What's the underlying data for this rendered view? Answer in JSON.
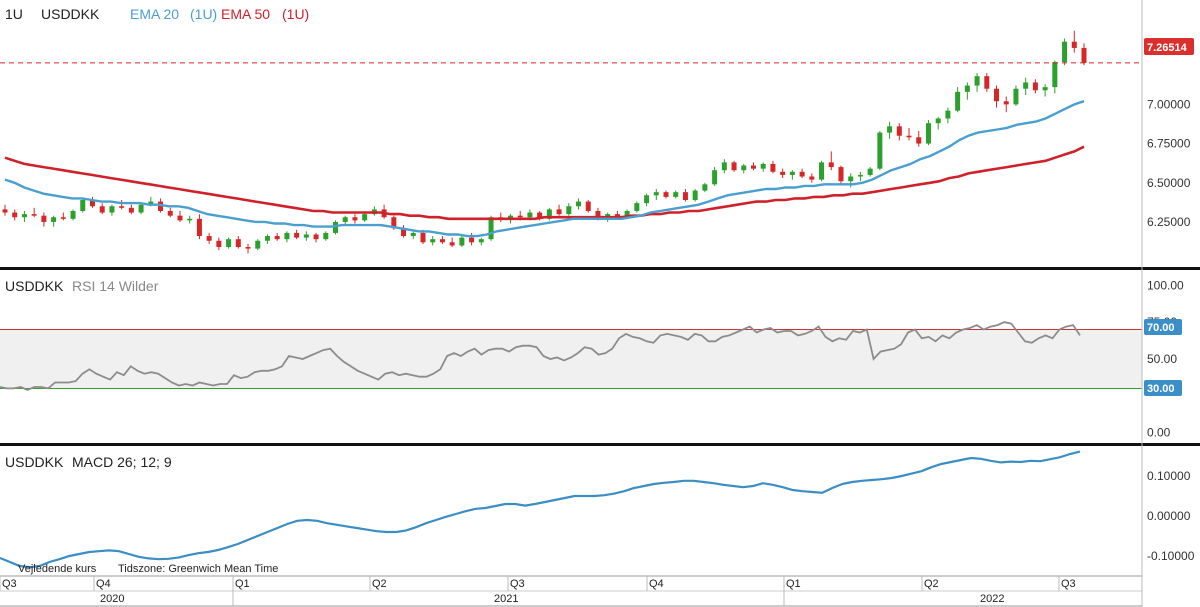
{
  "header": {
    "interval": "1U",
    "symbol": "USDDKK",
    "ema20_label": "EMA 20",
    "ema20_interval": "(1U)",
    "ema50_label": "EMA 50",
    "ema50_interval": "(1U)"
  },
  "rsi_header": {
    "symbol": "USDDKK",
    "label": "RSI 14 Wilder"
  },
  "macd_header": {
    "symbol": "USDDKK",
    "label": "MACD 26; 12; 9"
  },
  "footer": {
    "price_type": "Vejledende kurs",
    "timezone": "Tidszone: Greenwich Mean Time"
  },
  "price_badge": "7.26514",
  "rsi_badges": {
    "upper": "70.00",
    "lower": "30.00"
  },
  "colors": {
    "up": "#2ca02c",
    "down": "#d62728",
    "ema20": "#4a9fd1",
    "ema50": "#d0202a",
    "rsi": "#8c8c8c",
    "macd": "#3b8ec4",
    "badge_blue": "#3a8fc9",
    "badge_red": "#d9302e",
    "rsi_zone": "#f0f0f0",
    "rsi_upper_line": "#cc3333",
    "rsi_lower_line": "#33a02c"
  },
  "chart_data": [
    {
      "type": "candlestick",
      "title": "USDDKK",
      "interval": "1U",
      "y_ticks": [
        "6.25000",
        "6.50000",
        "6.75000",
        "7.00000"
      ],
      "ylim": [
        6.02,
        7.5
      ],
      "last_price": 7.26514,
      "x_periods": [
        "Q3",
        "Q4",
        "Q1",
        "Q2",
        "Q3",
        "Q4",
        "Q1",
        "Q2",
        "Q3"
      ],
      "x_years": [
        "2020",
        "2021",
        "2022"
      ],
      "candles": [
        [
          6.33,
          6.36,
          6.29,
          6.31
        ],
        [
          6.31,
          6.33,
          6.26,
          6.28
        ],
        [
          6.28,
          6.32,
          6.25,
          6.3
        ],
        [
          6.3,
          6.34,
          6.28,
          6.29
        ],
        [
          6.29,
          6.31,
          6.22,
          6.25
        ],
        [
          6.25,
          6.29,
          6.22,
          6.28
        ],
        [
          6.28,
          6.31,
          6.26,
          6.27
        ],
        [
          6.27,
          6.33,
          6.26,
          6.32
        ],
        [
          6.32,
          6.4,
          6.31,
          6.39
        ],
        [
          6.39,
          6.41,
          6.34,
          6.35
        ],
        [
          6.35,
          6.37,
          6.3,
          6.31
        ],
        [
          6.31,
          6.36,
          6.29,
          6.35
        ],
        [
          6.35,
          6.39,
          6.33,
          6.34
        ],
        [
          6.34,
          6.36,
          6.3,
          6.31
        ],
        [
          6.31,
          6.37,
          6.3,
          6.36
        ],
        [
          6.36,
          6.41,
          6.35,
          6.38
        ],
        [
          6.38,
          6.4,
          6.31,
          6.32
        ],
        [
          6.32,
          6.34,
          6.28,
          6.29
        ],
        [
          6.29,
          6.32,
          6.25,
          6.26
        ],
        [
          6.26,
          6.29,
          6.24,
          6.27
        ],
        [
          6.27,
          6.3,
          6.14,
          6.16
        ],
        [
          6.16,
          6.18,
          6.11,
          6.13
        ],
        [
          6.13,
          6.15,
          6.07,
          6.09
        ],
        [
          6.09,
          6.15,
          6.08,
          6.14
        ],
        [
          6.14,
          6.16,
          6.08,
          6.09
        ],
        [
          6.09,
          6.11,
          6.05,
          6.08
        ],
        [
          6.08,
          6.14,
          6.07,
          6.13
        ],
        [
          6.13,
          6.17,
          6.11,
          6.16
        ],
        [
          6.16,
          6.18,
          6.13,
          6.14
        ],
        [
          6.14,
          6.19,
          6.12,
          6.18
        ],
        [
          6.18,
          6.2,
          6.14,
          6.15
        ],
        [
          6.15,
          6.19,
          6.13,
          6.17
        ],
        [
          6.17,
          6.18,
          6.12,
          6.14
        ],
        [
          6.14,
          6.19,
          6.13,
          6.18
        ],
        [
          6.18,
          6.26,
          6.17,
          6.25
        ],
        [
          6.25,
          6.29,
          6.23,
          6.28
        ],
        [
          6.28,
          6.3,
          6.24,
          6.26
        ],
        [
          6.26,
          6.31,
          6.25,
          6.3
        ],
        [
          6.3,
          6.35,
          6.29,
          6.33
        ],
        [
          6.33,
          6.36,
          6.27,
          6.28
        ],
        [
          6.28,
          6.29,
          6.2,
          6.21
        ],
        [
          6.21,
          6.23,
          6.15,
          6.16
        ],
        [
          6.16,
          6.19,
          6.14,
          6.18
        ],
        [
          6.18,
          6.2,
          6.11,
          6.12
        ],
        [
          6.12,
          6.16,
          6.1,
          6.14
        ],
        [
          6.14,
          6.16,
          6.11,
          6.12
        ],
        [
          6.12,
          6.15,
          6.09,
          6.1
        ],
        [
          6.1,
          6.16,
          6.09,
          6.15
        ],
        [
          6.15,
          6.18,
          6.1,
          6.12
        ],
        [
          6.12,
          6.15,
          6.1,
          6.14
        ],
        [
          6.14,
          6.29,
          6.13,
          6.28
        ],
        [
          6.28,
          6.31,
          6.25,
          6.27
        ],
        [
          6.27,
          6.3,
          6.24,
          6.29
        ],
        [
          6.29,
          6.32,
          6.26,
          6.28
        ],
        [
          6.28,
          6.33,
          6.26,
          6.31
        ],
        [
          6.31,
          6.32,
          6.26,
          6.27
        ],
        [
          6.27,
          6.34,
          6.26,
          6.33
        ],
        [
          6.33,
          6.36,
          6.29,
          6.3
        ],
        [
          6.3,
          6.37,
          6.29,
          6.35
        ],
        [
          6.35,
          6.4,
          6.33,
          6.38
        ],
        [
          6.38,
          6.39,
          6.31,
          6.32
        ],
        [
          6.32,
          6.34,
          6.26,
          6.27
        ],
        [
          6.27,
          6.31,
          6.25,
          6.3
        ],
        [
          6.3,
          6.32,
          6.27,
          6.28
        ],
        [
          6.28,
          6.33,
          6.27,
          6.32
        ],
        [
          6.32,
          6.38,
          6.31,
          6.37
        ],
        [
          6.37,
          6.43,
          6.35,
          6.42
        ],
        [
          6.42,
          6.46,
          6.39,
          6.44
        ],
        [
          6.44,
          6.45,
          6.4,
          6.41
        ],
        [
          6.41,
          6.45,
          6.4,
          6.44
        ],
        [
          6.44,
          6.46,
          6.38,
          6.39
        ],
        [
          6.39,
          6.46,
          6.38,
          6.45
        ],
        [
          6.45,
          6.5,
          6.44,
          6.49
        ],
        [
          6.49,
          6.6,
          6.48,
          6.58
        ],
        [
          6.58,
          6.65,
          6.56,
          6.63
        ],
        [
          6.63,
          6.64,
          6.57,
          6.58
        ],
        [
          6.58,
          6.62,
          6.56,
          6.61
        ],
        [
          6.61,
          6.63,
          6.58,
          6.59
        ],
        [
          6.59,
          6.63,
          6.57,
          6.62
        ],
        [
          6.62,
          6.64,
          6.56,
          6.57
        ],
        [
          6.57,
          6.59,
          6.53,
          6.55
        ],
        [
          6.55,
          6.58,
          6.52,
          6.57
        ],
        [
          6.57,
          6.59,
          6.53,
          6.54
        ],
        [
          6.54,
          6.56,
          6.5,
          6.52
        ],
        [
          6.52,
          6.64,
          6.51,
          6.63
        ],
        [
          6.63,
          6.7,
          6.58,
          6.6
        ],
        [
          6.6,
          6.61,
          6.49,
          6.51
        ],
        [
          6.51,
          6.56,
          6.47,
          6.54
        ],
        [
          6.54,
          6.57,
          6.51,
          6.55
        ],
        [
          6.55,
          6.6,
          6.54,
          6.59
        ],
        [
          6.59,
          6.83,
          6.58,
          6.82
        ],
        [
          6.82,
          6.89,
          6.78,
          6.86
        ],
        [
          6.86,
          6.88,
          6.77,
          6.8
        ],
        [
          6.8,
          6.85,
          6.77,
          6.79
        ],
        [
          6.79,
          6.83,
          6.73,
          6.75
        ],
        [
          6.75,
          6.9,
          6.74,
          6.88
        ],
        [
          6.88,
          6.92,
          6.84,
          6.91
        ],
        [
          6.91,
          6.98,
          6.88,
          6.96
        ],
        [
          6.96,
          7.11,
          6.95,
          7.08
        ],
        [
          7.08,
          7.14,
          7.03,
          7.12
        ],
        [
          7.12,
          7.2,
          7.08,
          7.18
        ],
        [
          7.18,
          7.2,
          7.08,
          7.1
        ],
        [
          7.1,
          7.12,
          6.98,
          7.02
        ],
        [
          7.02,
          7.05,
          6.95,
          7.0
        ],
        [
          7.0,
          7.12,
          6.99,
          7.1
        ],
        [
          7.1,
          7.17,
          7.06,
          7.14
        ],
        [
          7.14,
          7.16,
          7.07,
          7.09
        ],
        [
          7.09,
          7.13,
          7.05,
          7.11
        ],
        [
          7.11,
          7.28,
          7.07,
          7.27
        ],
        [
          7.27,
          7.42,
          7.25,
          7.4
        ],
        [
          7.4,
          7.47,
          7.33,
          7.36
        ],
        [
          7.36,
          7.39,
          7.25,
          7.265
        ]
      ],
      "ema20": [
        6.52,
        6.5,
        6.47,
        6.45,
        6.43,
        6.42,
        6.41,
        6.4,
        6.4,
        6.39,
        6.38,
        6.38,
        6.37,
        6.37,
        6.37,
        6.36,
        6.36,
        6.35,
        6.35,
        6.34,
        6.32,
        6.3,
        6.29,
        6.28,
        6.27,
        6.26,
        6.25,
        6.25,
        6.24,
        6.24,
        6.23,
        6.23,
        6.22,
        6.22,
        6.22,
        6.23,
        6.23,
        6.23,
        6.23,
        6.23,
        6.22,
        6.21,
        6.2,
        6.19,
        6.19,
        6.18,
        6.17,
        6.17,
        6.16,
        6.16,
        6.17,
        6.19,
        6.2,
        6.21,
        6.22,
        6.23,
        6.24,
        6.25,
        6.26,
        6.27,
        6.27,
        6.27,
        6.27,
        6.27,
        6.27,
        6.28,
        6.29,
        6.31,
        6.32,
        6.33,
        6.34,
        6.35,
        6.36,
        6.38,
        6.4,
        6.42,
        6.43,
        6.44,
        6.45,
        6.46,
        6.46,
        6.47,
        6.47,
        6.48,
        6.48,
        6.49,
        6.49,
        6.49,
        6.49,
        6.5,
        6.52,
        6.55,
        6.58,
        6.6,
        6.62,
        6.65,
        6.67,
        6.7,
        6.73,
        6.77,
        6.8,
        6.82,
        6.83,
        6.84,
        6.85,
        6.87,
        6.88,
        6.89,
        6.91,
        6.94,
        6.97,
        7.0,
        7.02
      ],
      "ema50": [
        6.66,
        6.64,
        6.62,
        6.61,
        6.6,
        6.59,
        6.58,
        6.57,
        6.56,
        6.55,
        6.54,
        6.53,
        6.52,
        6.51,
        6.5,
        6.49,
        6.48,
        6.47,
        6.46,
        6.45,
        6.44,
        6.43,
        6.42,
        6.41,
        6.4,
        6.39,
        6.38,
        6.37,
        6.36,
        6.35,
        6.34,
        6.33,
        6.32,
        6.32,
        6.31,
        6.31,
        6.31,
        6.31,
        6.31,
        6.31,
        6.3,
        6.3,
        6.29,
        6.29,
        6.28,
        6.28,
        6.27,
        6.27,
        6.27,
        6.27,
        6.27,
        6.27,
        6.27,
        6.27,
        6.27,
        6.27,
        6.28,
        6.28,
        6.28,
        6.28,
        6.28,
        6.28,
        6.28,
        6.28,
        6.28,
        6.29,
        6.29,
        6.3,
        6.3,
        6.31,
        6.31,
        6.32,
        6.32,
        6.33,
        6.34,
        6.35,
        6.36,
        6.37,
        6.38,
        6.38,
        6.39,
        6.39,
        6.4,
        6.4,
        6.41,
        6.41,
        6.42,
        6.42,
        6.43,
        6.43,
        6.44,
        6.45,
        6.46,
        6.47,
        6.48,
        6.49,
        6.5,
        6.51,
        6.53,
        6.54,
        6.56,
        6.57,
        6.58,
        6.59,
        6.6,
        6.61,
        6.62,
        6.63,
        6.64,
        6.66,
        6.68,
        6.7,
        6.73
      ]
    },
    {
      "type": "line",
      "title": "RSI 14 Wilder",
      "y_ticks": [
        "0.00",
        "50.00",
        "75.00",
        "100.00"
      ],
      "ylim": [
        -5,
        107
      ],
      "upper_level": 70,
      "lower_level": 30,
      "series": [
        {
          "name": "RSI 14 Wilder",
          "values": [
            31,
            30,
            30,
            31,
            29,
            31,
            31,
            30,
            34,
            34,
            34,
            35,
            40,
            43,
            40,
            38,
            36,
            41,
            39,
            45,
            42,
            40,
            41,
            40,
            37,
            34,
            32,
            33,
            32,
            34,
            33,
            32,
            33,
            33,
            39,
            37,
            38,
            41,
            42,
            42,
            43,
            45,
            52,
            51,
            50,
            52,
            54,
            56,
            57,
            52,
            48,
            45,
            42,
            40,
            38,
            36,
            40,
            41,
            39,
            40,
            39,
            38,
            38,
            40,
            43,
            52,
            54,
            52,
            55,
            57,
            53,
            56,
            57,
            57,
            55,
            58,
            59,
            59,
            58,
            52,
            50,
            51,
            49,
            51,
            54,
            58,
            57,
            53,
            54,
            57,
            64,
            67,
            65,
            64,
            62,
            61,
            66,
            67,
            66,
            65,
            63,
            67,
            66,
            62,
            62,
            65,
            66,
            68,
            70,
            72,
            68,
            70,
            71,
            68,
            69,
            69,
            66,
            67,
            69,
            72,
            65,
            62,
            64,
            63,
            69,
            68,
            70,
            50,
            55,
            56,
            57,
            60,
            68,
            70,
            64,
            65,
            62,
            66,
            64,
            68,
            70,
            71,
            73,
            70,
            72,
            73,
            75,
            74,
            68,
            62,
            61,
            64,
            66,
            64,
            70,
            72,
            73,
            66
          ]
        }
      ]
    },
    {
      "type": "line",
      "title": "MACD 26; 12; 9",
      "y_ticks": [
        "0.10000",
        "0.00000",
        "-0.10000"
      ],
      "ylim": [
        -0.15,
        0.165
      ],
      "series": [
        {
          "name": "MACD",
          "values": [
            -0.105,
            -0.115,
            -0.125,
            -0.128,
            -0.125,
            -0.115,
            -0.108,
            -0.1,
            -0.095,
            -0.09,
            -0.088,
            -0.086,
            -0.088,
            -0.095,
            -0.102,
            -0.106,
            -0.108,
            -0.107,
            -0.104,
            -0.098,
            -0.093,
            -0.09,
            -0.085,
            -0.078,
            -0.07,
            -0.06,
            -0.05,
            -0.04,
            -0.03,
            -0.02,
            -0.012,
            -0.01,
            -0.012,
            -0.018,
            -0.022,
            -0.026,
            -0.03,
            -0.034,
            -0.038,
            -0.04,
            -0.04,
            -0.036,
            -0.028,
            -0.018,
            -0.01,
            -0.002,
            0.005,
            0.012,
            0.018,
            0.02,
            0.025,
            0.03,
            0.03,
            0.026,
            0.03,
            0.035,
            0.04,
            0.045,
            0.05,
            0.05,
            0.05,
            0.052,
            0.056,
            0.062,
            0.07,
            0.075,
            0.08,
            0.083,
            0.085,
            0.088,
            0.088,
            0.085,
            0.082,
            0.078,
            0.075,
            0.072,
            0.075,
            0.082,
            0.078,
            0.072,
            0.065,
            0.062,
            0.06,
            0.058,
            0.07,
            0.08,
            0.085,
            0.088,
            0.09,
            0.092,
            0.095,
            0.1,
            0.106,
            0.112,
            0.122,
            0.13,
            0.135,
            0.14,
            0.145,
            0.143,
            0.138,
            0.134,
            0.136,
            0.135,
            0.138,
            0.137,
            0.142,
            0.147,
            0.155,
            0.161
          ]
        }
      ]
    }
  ]
}
